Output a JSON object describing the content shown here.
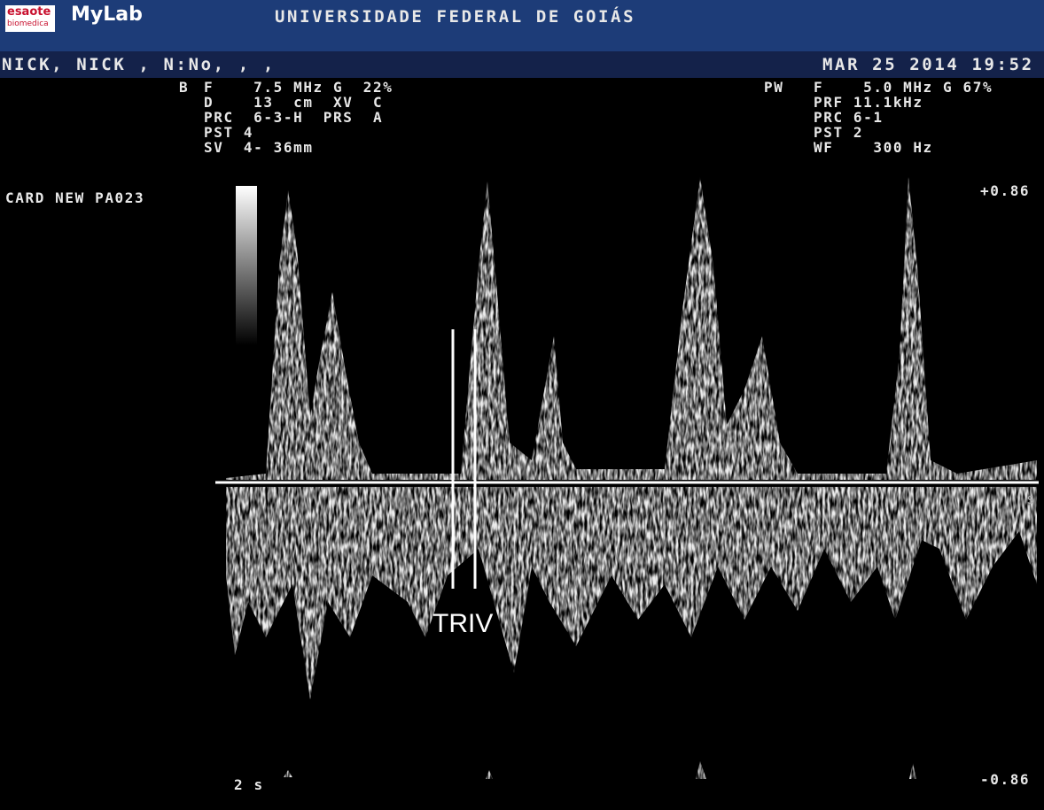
{
  "header": {
    "logo_brand": "esaote",
    "logo_sub": "biomedica",
    "logo_product": "MyLab",
    "title": "UNIVERSIDADE FEDERAL DE GOIÁS"
  },
  "patient": {
    "name": "NICK, NICK , N:No, , ,",
    "datetime": "MAR 25 2014 19:52"
  },
  "b_mode": {
    "label": "B",
    "lines": [
      "F    7.5 MHz G  22%",
      "D    13  cm  XV  C",
      "PRC  6-3-H  PRS  A",
      "PST 4",
      "SV  4- 36mm"
    ]
  },
  "pw_mode": {
    "label": "PW",
    "lines": [
      "F    5.0 MHz G 67%",
      "PRF 11.1kHz",
      "PRC 6-1",
      "PST 2",
      "WF    300 Hz"
    ]
  },
  "preset": "CARD NEW PA023",
  "scale": {
    "top": "+0.86",
    "bottom": "-0.86",
    "unit_marker": "s",
    "time": "2 s"
  },
  "annotation": "TRIV"
}
